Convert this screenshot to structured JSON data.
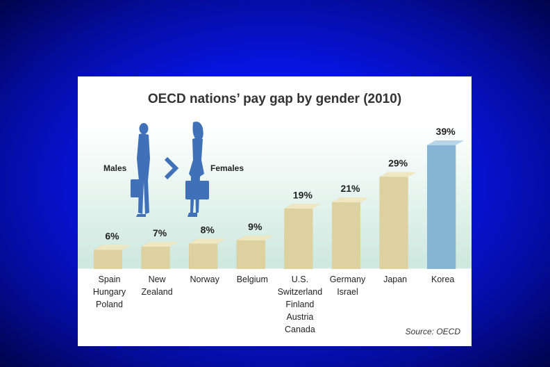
{
  "chart_data": {
    "type": "bar",
    "title": "OECD nations’ pay gap by gender (2010)",
    "categories": [
      [
        "Spain",
        "Hungary",
        "Poland"
      ],
      [
        "New",
        "Zealand"
      ],
      [
        "Norway"
      ],
      [
        "Belgium"
      ],
      [
        "U.S.",
        "Switzerland",
        "Finland",
        "Austria",
        "Canada"
      ],
      [
        "Germany",
        "Israel"
      ],
      [
        "Japan"
      ],
      [
        "Korea"
      ]
    ],
    "values": [
      6,
      7,
      8,
      9,
      19,
      21,
      29,
      39
    ],
    "value_labels": [
      "6%",
      "7%",
      "8%",
      "9%",
      "19%",
      "21%",
      "29%",
      "39%"
    ],
    "highlight_index": 7,
    "ylim": [
      0,
      39
    ],
    "grid": false,
    "colors": {
      "bar_front": "#ddd1a0",
      "bar_side": "#aa9f73",
      "bar_top": "#efe6c2",
      "highlight_front": "#86b5d3",
      "highlight_side": "#4f85ad",
      "highlight_top": "#b7d6e9",
      "figure": "#3f70b8"
    },
    "legend": {
      "males_label": "Males",
      "females_label": "Females"
    },
    "source": "Source: OECD"
  }
}
